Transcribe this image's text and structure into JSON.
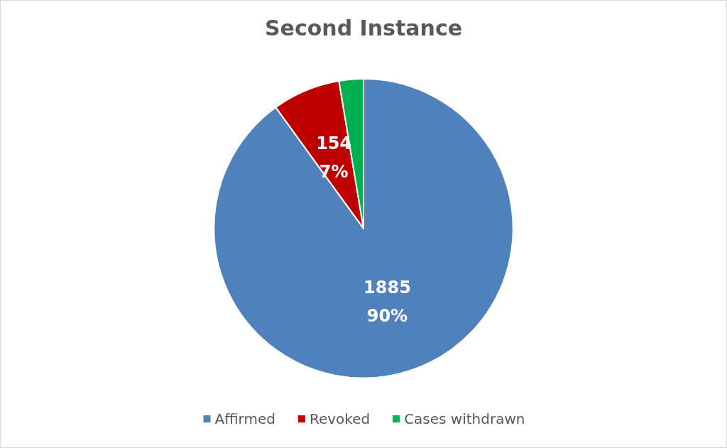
{
  "chart_data": {
    "type": "pie",
    "title": "Second Instance",
    "categories": [
      "Affirmed",
      "Revoked",
      "Cases withdrawn"
    ],
    "values": [
      1885,
      154,
      55
    ],
    "colors": [
      "#4f81bd",
      "#c00000",
      "#00b050"
    ],
    "value_labels": [
      "1885\n90%",
      "154\n7%",
      null
    ],
    "legend": "bottom"
  }
}
